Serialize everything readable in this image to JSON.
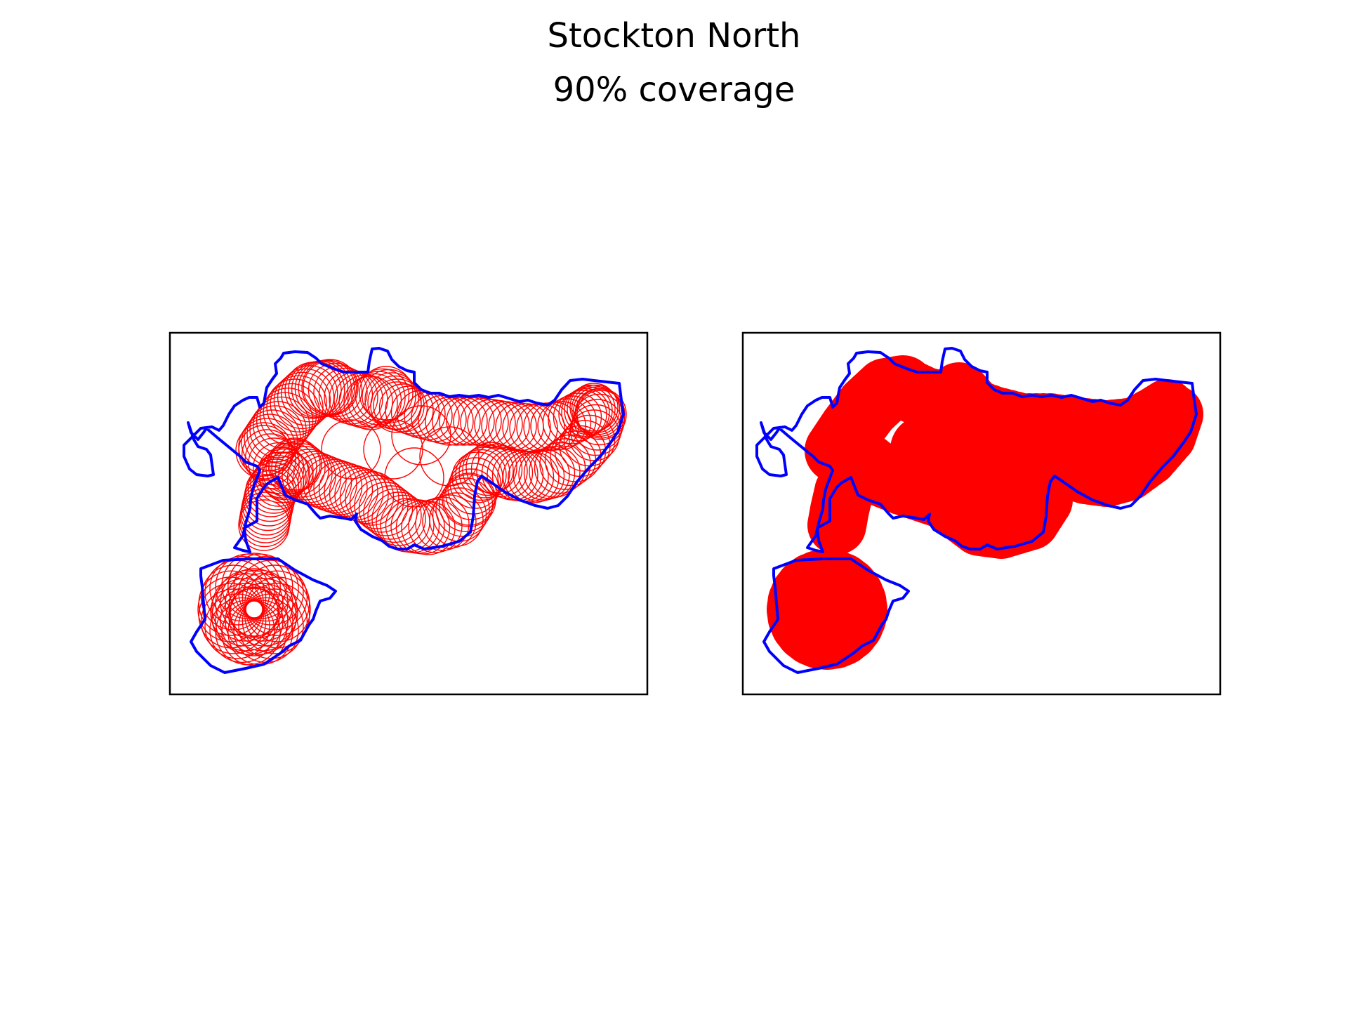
{
  "figure": {
    "title": "Stockton North",
    "subtitle": "90% coverage"
  },
  "colors": {
    "boundary": "#0000ff",
    "coverage": "#ff0000",
    "frame": "#000000",
    "background": "#ffffff"
  },
  "panels": [
    {
      "name": "left-panel",
      "style": "outlined-circles"
    },
    {
      "name": "right-panel",
      "style": "filled-coverage"
    }
  ]
}
